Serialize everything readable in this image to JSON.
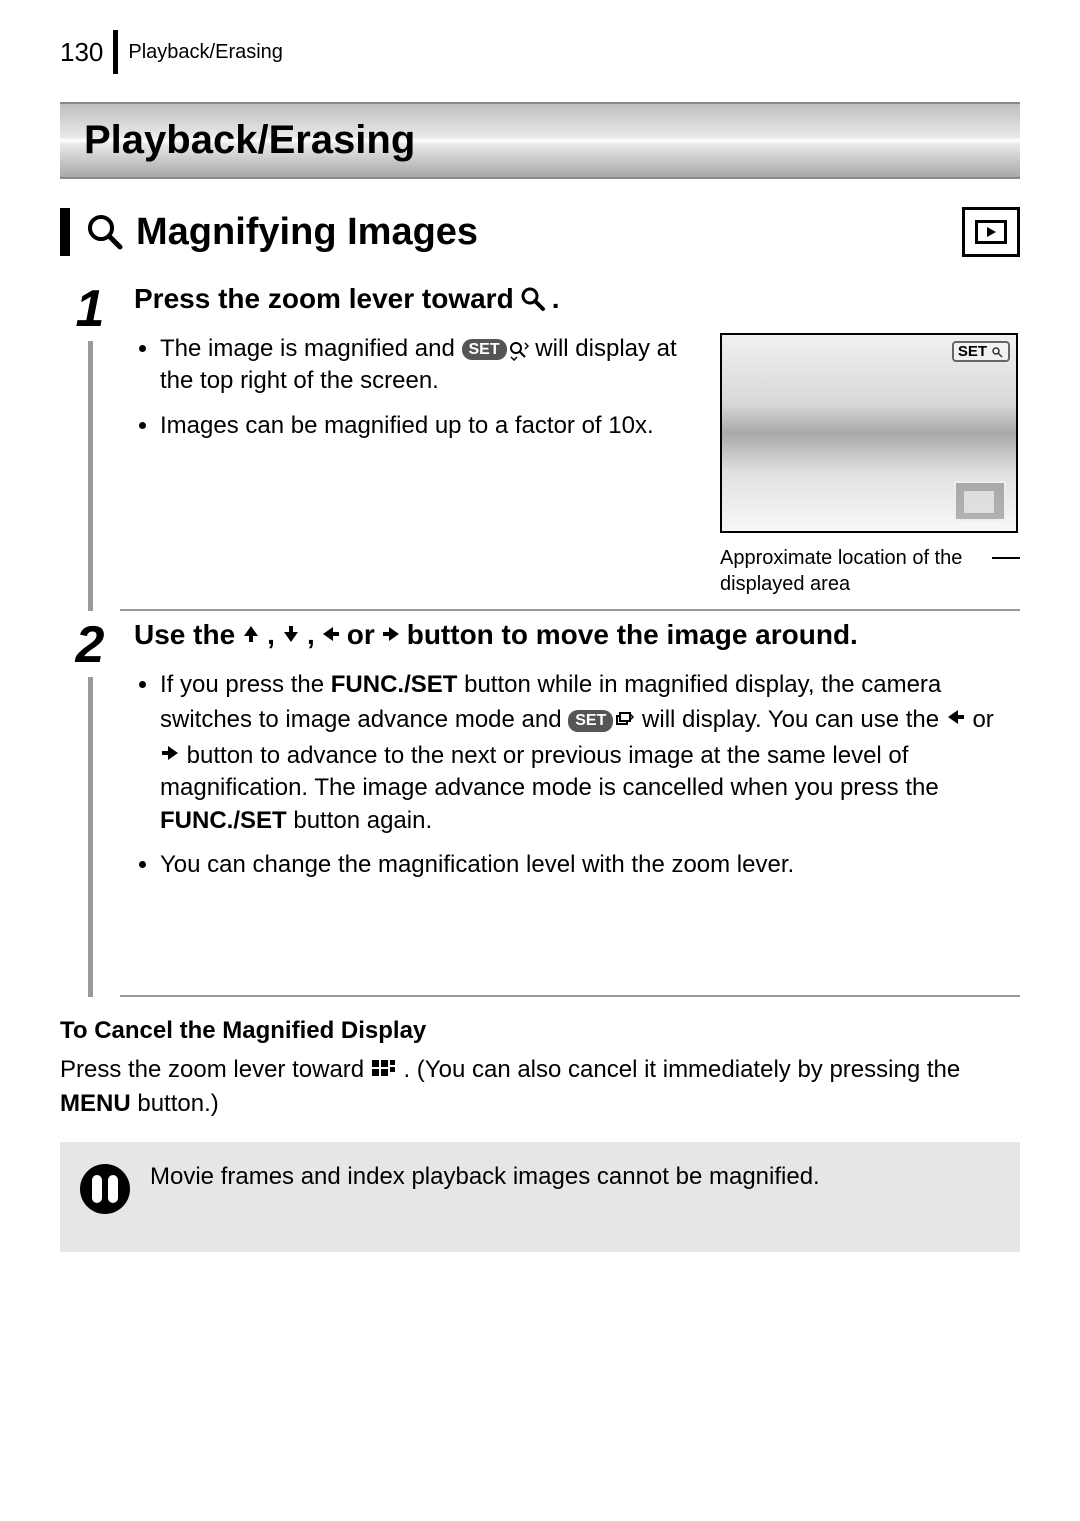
{
  "page": {
    "number": "130",
    "header_section": "Playback/Erasing"
  },
  "chapter": {
    "title": "Playback/Erasing"
  },
  "section": {
    "title": "Magnifying Images"
  },
  "step1": {
    "num": "1",
    "heading_before": "Press the zoom lever toward ",
    "heading_after": ".",
    "bullets": {
      "b1a": "The image is magnified and ",
      "b1b": " will display at the top right of the screen.",
      "b2": "Images can be magnified up to a factor of 10x."
    },
    "set_label": "SET",
    "lcd_set_label": "SET",
    "caption": "Approximate location of the displayed area"
  },
  "step2": {
    "num": "2",
    "heading_a": "Use the ",
    "heading_b": ", ",
    "heading_c": ", ",
    "heading_d": " or ",
    "heading_e": " button to move the image around.",
    "bullets": {
      "b1a": "If you press the ",
      "b1b": "FUNC./SET",
      "b1c": " button while in magnified display, the camera switches to image advance mode and ",
      "b1d": " will display. You can use the ",
      "b1e": " or ",
      "b1f": " button to advance to the next or previous image at the same level of magnification. The image advance mode is cancelled when you press the ",
      "b1g": "FUNC./SET",
      "b1h": " button again.",
      "b2": "You can change the magnification level with the zoom lever."
    },
    "set_label": "SET"
  },
  "cancel": {
    "heading": "To Cancel the Magnified Display",
    "text_a": "Press the zoom lever toward ",
    "text_b": ". (You can also cancel it immediately by pressing the ",
    "menu_label": "MENU",
    "text_c": " button.)"
  },
  "note": {
    "text": "Movie frames and index playback images cannot be magnified."
  },
  "colors": {
    "text": "#000000",
    "background": "#ffffff",
    "divider": "#999999",
    "note_bg": "#e6e6e6",
    "set_pill": "#555555"
  }
}
